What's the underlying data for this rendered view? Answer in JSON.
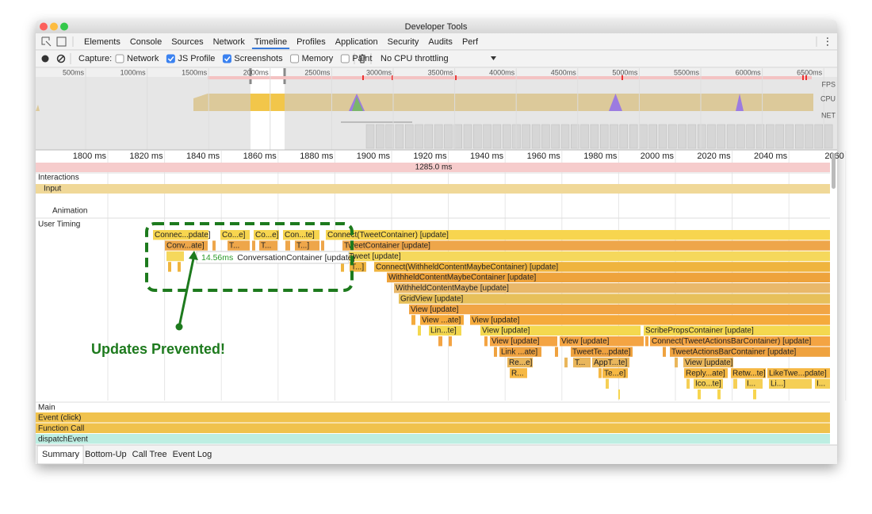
{
  "window": {
    "title": "Developer Tools"
  },
  "tabs": [
    {
      "label": "Elements",
      "selected": false
    },
    {
      "label": "Console",
      "selected": false
    },
    {
      "label": "Sources",
      "selected": false
    },
    {
      "label": "Network",
      "selected": false
    },
    {
      "label": "Timeline",
      "selected": true
    },
    {
      "label": "Profiles",
      "selected": false
    },
    {
      "label": "Application",
      "selected": false
    },
    {
      "label": "Security",
      "selected": false
    },
    {
      "label": "Audits",
      "selected": false
    },
    {
      "label": "Perf",
      "selected": false
    }
  ],
  "toolbar": {
    "capture_label": "Capture:",
    "options": [
      {
        "label": "Network",
        "checked": false
      },
      {
        "label": "JS Profile",
        "checked": true
      },
      {
        "label": "Screenshots",
        "checked": true
      },
      {
        "label": "Memory",
        "checked": false
      },
      {
        "label": "Paint",
        "checked": false
      }
    ],
    "throttling": "No CPU throttling"
  },
  "overview": {
    "ticks": [
      "500ms",
      "1000ms",
      "1500ms",
      "2000ms",
      "2500ms",
      "3000ms",
      "3500ms",
      "4000ms",
      "4500ms",
      "5000ms",
      "5500ms",
      "6000ms",
      "6500ms"
    ],
    "lanes": [
      "FPS",
      "CPU",
      "NET"
    ]
  },
  "ruler": {
    "ticks": [
      "1800 ms",
      "1820 ms",
      "1840 ms",
      "1860 ms",
      "1880 ms",
      "1900 ms",
      "1920 ms",
      "1940 ms",
      "1960 ms",
      "1980 ms",
      "2000 ms",
      "2020 ms",
      "2040 ms",
      "2060"
    ],
    "range_label": "1285.0 ms"
  },
  "tracks": {
    "interactions": "Interactions",
    "input": "Input",
    "animation": "Animation",
    "user_timing": "User Timing",
    "main": "Main"
  },
  "flame": [
    "Connec...pdate]",
    "Co...e]",
    "Co...e]",
    "Con...te]",
    "Connect(TweetContainer) [update]",
    "Conv...ate]",
    "T...",
    "T...",
    "T...]",
    "TweetContainer [update]",
    "Tweet [update]",
    "T...]",
    "Connect(WithheldContentMaybeContainer) [update]",
    "WithheldContentMaybeContainer [update]",
    "WithheldContentMaybe [update]",
    "GridView [update]",
    "View [update]",
    "View ...ate]",
    "View [update]",
    "Lin...te]",
    "View [update]",
    "ScribePropsContainer [update]",
    "View [update]",
    "View [update]",
    "Connect(TweetActionsBarContainer) [update]",
    "Link ...ate]",
    "TweetTe...pdate]",
    "TweetActionsBarContainer [update]",
    "Re...e]",
    "T...",
    "AppT...te]",
    "View [update]",
    "R...",
    "Te...e]",
    "Reply...ate]",
    "Retw...te]",
    "LikeTwe...pdate]",
    "Ico...te]",
    "I...",
    "Li...]",
    "I..."
  ],
  "tooltip": {
    "duration": "14.56ms",
    "name": "ConversationContainer [update]"
  },
  "annotation": "Updates Prevented!",
  "main_entries": [
    "Event (click)",
    "Function Call",
    "dispatchEvent"
  ],
  "bottom_tabs": [
    {
      "label": "Summary",
      "selected": true
    },
    {
      "label": "Bottom-Up",
      "selected": false
    },
    {
      "label": "Call Tree",
      "selected": false
    },
    {
      "label": "Event Log",
      "selected": false
    }
  ]
}
